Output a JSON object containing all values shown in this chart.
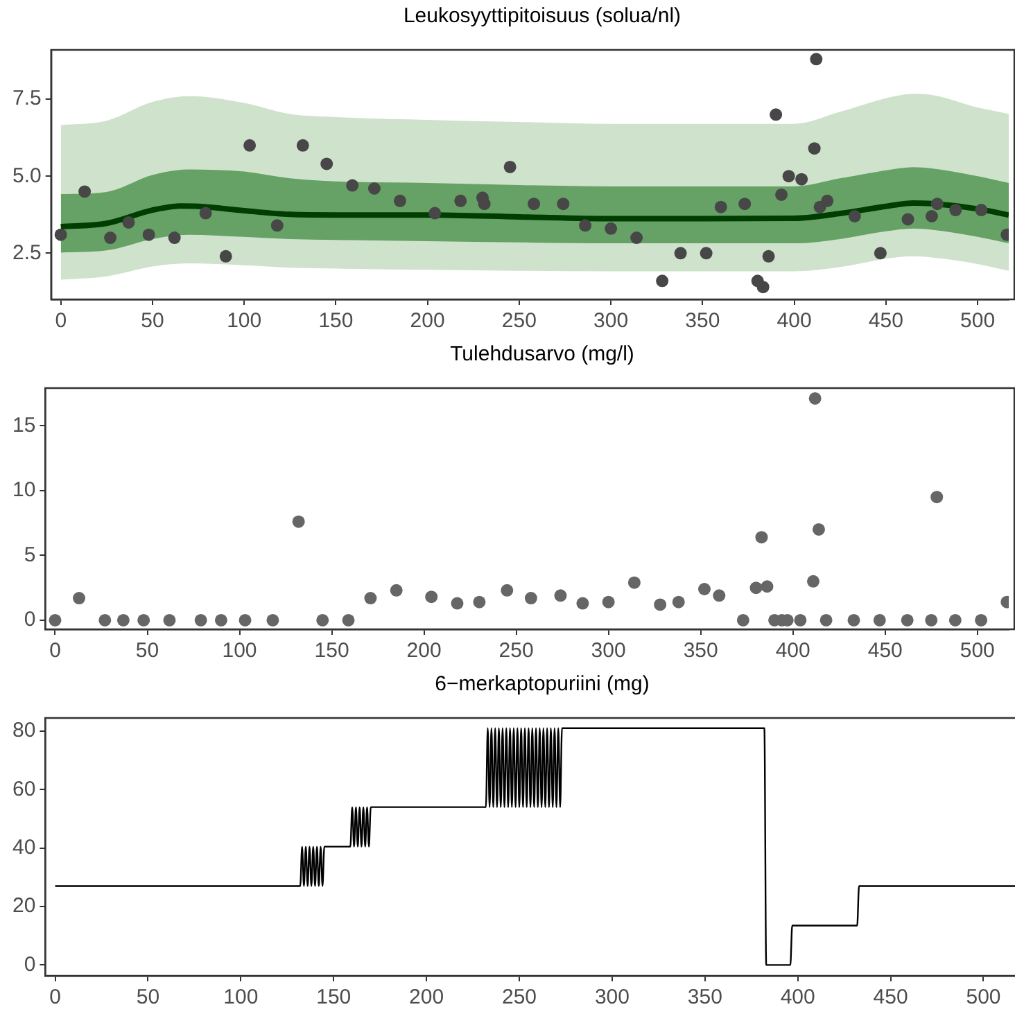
{
  "chart_data": [
    {
      "type": "line",
      "title": "Leukosyyttipitoisuus (solua/nl)",
      "xlim": [
        -5.3,
        517
      ],
      "xticks": [
        0,
        50,
        100,
        150,
        200,
        250,
        300,
        350,
        400,
        450,
        500
      ],
      "ylim": [
        1.0,
        9.1
      ],
      "yticks": [
        2.5,
        {
          "value": 5,
          "label": "5.0"
        },
        {
          "value": 7.5,
          "label": "7.5"
        }
      ],
      "grid": false,
      "series": [
        {
          "type": "line",
          "color": "#cfe2cc",
          "x": [
            0,
            25,
            50,
            70,
            100,
            125,
            150,
            200,
            250,
            300,
            350,
            400,
            425,
            450,
            465,
            475,
            500,
            517
          ],
          "values": [
            null,
            null,
            null,
            null,
            null,
            null,
            null,
            null,
            null,
            null,
            null,
            null,
            null,
            null,
            null,
            null,
            null,
            null
          ],
          "lower": [
            1.64,
            1.75,
            2.07,
            2.17,
            2.11,
            2.03,
            2.0,
            1.96,
            1.93,
            1.91,
            1.91,
            1.91,
            2.05,
            2.32,
            2.4,
            2.36,
            2.15,
            1.93
          ],
          "upper": [
            6.66,
            6.8,
            7.41,
            7.6,
            7.38,
            7.02,
            6.92,
            6.83,
            6.76,
            6.7,
            6.7,
            6.7,
            7.09,
            7.53,
            7.67,
            7.64,
            7.23,
            7.02
          ]
        },
        {
          "type": "line",
          "color": "#66a266",
          "x": [
            0,
            25,
            50,
            70,
            100,
            125,
            150,
            200,
            250,
            300,
            350,
            400,
            425,
            450,
            465,
            475,
            500,
            517
          ],
          "values": [
            null,
            null,
            null,
            null,
            null,
            null,
            null,
            null,
            null,
            null,
            null,
            null,
            null,
            null,
            null,
            null,
            null,
            null
          ],
          "lower": [
            2.52,
            2.59,
            2.96,
            3.1,
            3.03,
            2.96,
            2.93,
            2.89,
            2.85,
            2.82,
            2.82,
            2.82,
            2.96,
            3.21,
            3.3,
            3.26,
            3.03,
            2.82
          ],
          "upper": [
            4.42,
            4.49,
            5.04,
            5.22,
            5.15,
            4.93,
            4.83,
            4.78,
            4.71,
            4.67,
            4.67,
            4.67,
            4.93,
            5.19,
            5.29,
            5.25,
            5.0,
            4.78
          ]
        },
        {
          "color": "#003d00",
          "x": [
            0,
            25,
            50,
            65,
            75,
            100,
            125,
            150,
            200,
            250,
            300,
            350,
            400,
            425,
            450,
            465,
            475,
            500,
            517
          ],
          "values": [
            3.36,
            3.47,
            3.9,
            4.03,
            4.02,
            3.88,
            3.76,
            3.74,
            3.74,
            3.68,
            3.62,
            3.62,
            3.63,
            3.79,
            4.02,
            4.13,
            4.11,
            3.94,
            3.74
          ]
        },
        {
          "type": "scatter",
          "color": "#474747",
          "x": [
            0,
            13,
            27,
            37,
            48,
            62,
            79,
            90,
            103,
            118,
            132,
            145,
            159,
            171,
            185,
            204,
            218,
            230,
            231,
            245,
            258,
            274,
            286,
            300,
            314,
            328,
            338,
            352,
            360,
            373,
            380,
            383,
            386,
            390,
            393,
            397,
            404,
            411,
            412,
            414,
            418,
            433,
            447,
            462,
            475,
            478,
            488,
            502,
            516
          ],
          "values": [
            3.1,
            4.5,
            3.0,
            3.5,
            3.1,
            3.0,
            3.8,
            2.4,
            6.0,
            3.4,
            6.0,
            5.4,
            4.7,
            4.6,
            4.2,
            3.8,
            4.2,
            4.3,
            4.1,
            5.3,
            4.1,
            4.1,
            3.4,
            3.3,
            3.0,
            1.6,
            2.5,
            2.5,
            4.0,
            4.1,
            1.6,
            1.4,
            2.4,
            7.0,
            4.4,
            5.0,
            4.9,
            5.9,
            8.8,
            4.0,
            4.2,
            3.7,
            2.5,
            3.6,
            3.7,
            4.1,
            3.9,
            3.9,
            3.1
          ]
        }
      ]
    },
    {
      "type": "scatter",
      "title": "Tulehdusarvo (mg/l)",
      "xlim": [
        -5.3,
        517
      ],
      "xticks": [
        0,
        50,
        100,
        150,
        200,
        250,
        300,
        350,
        400,
        450,
        500
      ],
      "ylim": [
        -0.7,
        17.9
      ],
      "yticks": [
        0,
        5,
        10,
        15
      ],
      "grid": false,
      "series": [
        {
          "color": "#666666",
          "x": [
            0,
            13,
            27,
            37,
            48,
            62,
            79,
            90,
            103,
            118,
            132,
            145,
            159,
            171,
            185,
            204,
            218,
            230,
            245,
            258,
            274,
            286,
            300,
            314,
            328,
            338,
            352,
            360,
            373,
            380,
            383,
            386,
            390,
            394,
            397,
            404,
            411,
            412,
            414,
            418,
            433,
            447,
            462,
            475,
            478,
            488,
            502,
            516
          ],
          "values": [
            0,
            1.7,
            0,
            0,
            0,
            0,
            0,
            0,
            0,
            0,
            7.6,
            0,
            0,
            1.7,
            2.3,
            1.8,
            1.3,
            1.4,
            2.3,
            1.7,
            1.9,
            1.3,
            1.4,
            2.9,
            1.2,
            1.4,
            2.4,
            1.9,
            0,
            2.5,
            6.4,
            2.6,
            0,
            0,
            0,
            0,
            3.0,
            17.1,
            7.0,
            0,
            0,
            0,
            0,
            0,
            9.5,
            0,
            0,
            1.4
          ]
        }
      ]
    },
    {
      "type": "line",
      "title": "6−merkaptopuriini (mg)",
      "xlim": [
        -5.3,
        517
      ],
      "xticks": [
        0,
        50,
        100,
        150,
        200,
        250,
        300,
        350,
        400,
        450,
        500
      ],
      "ylim": [
        -3.7,
        84.5
      ],
      "yticks": [
        0,
        20,
        40,
        60,
        80
      ],
      "grid": false,
      "series": [
        {
          "color": "#000000",
          "x": [
            0,
            132,
            133,
            134,
            135,
            136,
            137,
            138,
            139,
            140,
            141,
            142,
            143,
            144,
            145,
            159,
            160,
            161,
            162,
            163,
            164,
            165,
            166,
            167,
            168,
            169,
            170,
            232,
            233,
            234,
            235,
            236,
            237,
            238,
            239,
            240,
            241,
            242,
            243,
            244,
            245,
            246,
            247,
            248,
            249,
            250,
            251,
            252,
            253,
            254,
            255,
            256,
            257,
            258,
            259,
            260,
            261,
            262,
            263,
            264,
            265,
            266,
            267,
            268,
            269,
            270,
            271,
            272,
            273,
            382,
            383,
            396,
            397,
            432,
            433,
            517
          ],
          "values": [
            27,
            27,
            40.5,
            27,
            40.5,
            27,
            40.5,
            27,
            40.5,
            27,
            40.5,
            27,
            40.5,
            27,
            40.5,
            40.5,
            54,
            40.5,
            54,
            40.5,
            54,
            40.5,
            54,
            40.5,
            54,
            40.5,
            54,
            54,
            81,
            54,
            81,
            54,
            81,
            54,
            81,
            54,
            81,
            54,
            81,
            54,
            81,
            54,
            81,
            54,
            81,
            54,
            81,
            54,
            81,
            54,
            81,
            54,
            81,
            54,
            81,
            54,
            81,
            54,
            81,
            54,
            81,
            54,
            81,
            54,
            81,
            54,
            81,
            54,
            81,
            81,
            0,
            0,
            13.5,
            13.5,
            27,
            27
          ]
        }
      ]
    }
  ]
}
